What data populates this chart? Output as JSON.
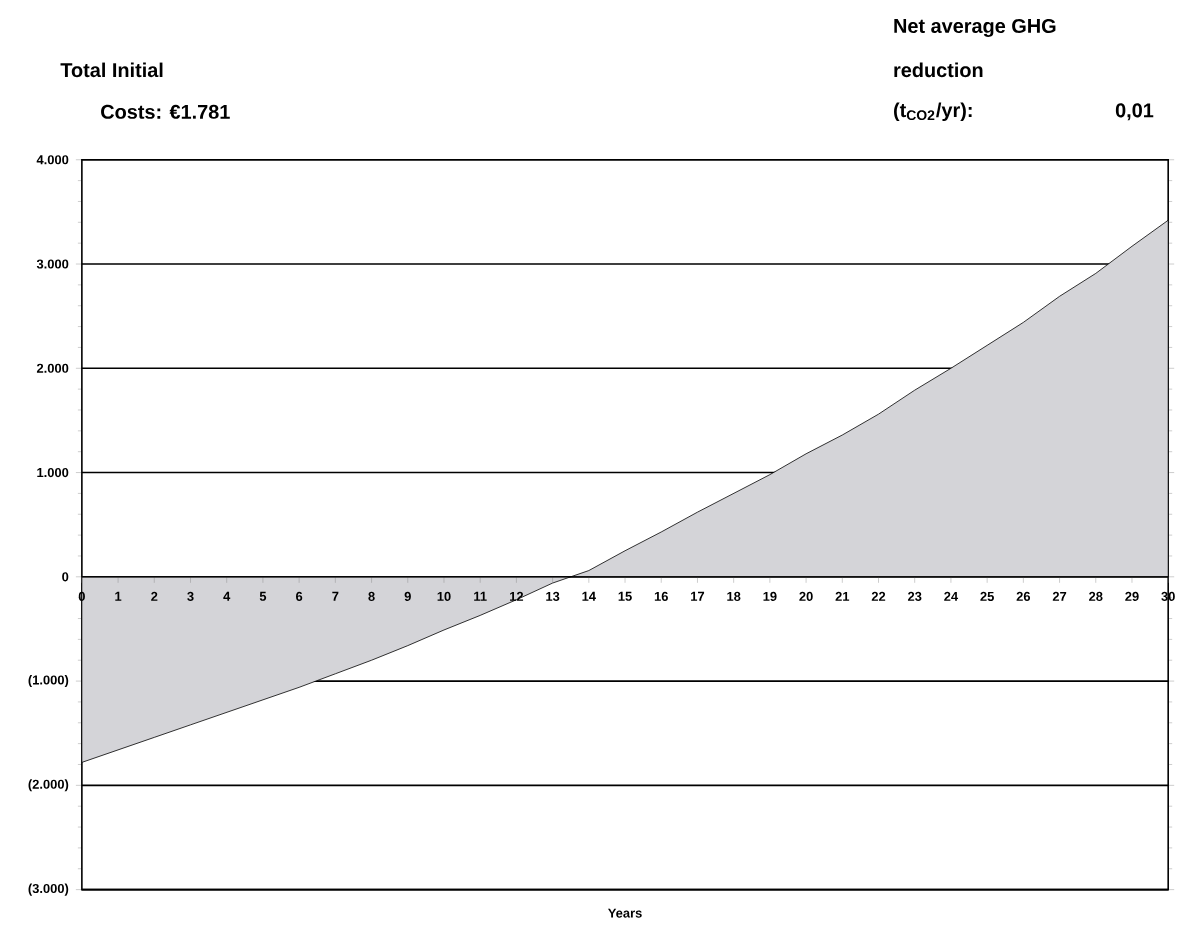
{
  "chart_data": {
    "type": "area",
    "annotations": [
      "Total Initial",
      "Costs: €1.781",
      "Net average GHG",
      "reduction",
      "(t$_{CO2}$/yr):",
      "0,01"
    ],
    "xlabel": "Years",
    "x": [
      0,
      1,
      2,
      3,
      4,
      5,
      6,
      7,
      8,
      9,
      10,
      11,
      12,
      13,
      14,
      15,
      16,
      17,
      18,
      19,
      20,
      21,
      22,
      23,
      24,
      25,
      26,
      27,
      28,
      29,
      30
    ],
    "values": [
      -1780,
      -1660,
      -1540,
      -1420,
      -1300,
      -1180,
      -1060,
      -930,
      -800,
      -660,
      -510,
      -370,
      -220,
      -60,
      60,
      250,
      430,
      620,
      800,
      980,
      1180,
      1360,
      1560,
      1790,
      2000,
      2220,
      2440,
      2690,
      2910,
      3170,
      3420
    ],
    "color": "#d4d4d8",
    "xlim": [
      0,
      30
    ],
    "xticks": [
      0,
      1,
      2,
      3,
      4,
      5,
      6,
      7,
      8,
      9,
      10,
      11,
      12,
      13,
      14,
      15,
      16,
      17,
      18,
      19,
      20,
      21,
      22,
      23,
      24,
      25,
      26,
      27,
      28,
      29,
      30
    ],
    "ylim": [
      -3000,
      4000
    ],
    "yticks": [
      {
        "value": -3000,
        "label": "(3.000)"
      },
      {
        "value": -2000,
        "label": "(2.000)"
      },
      {
        "value": -1000,
        "label": "(1.000)"
      },
      {
        "value": 0,
        "label": "0"
      },
      {
        "value": 1000,
        "label": "1.000"
      },
      {
        "value": 2000,
        "label": "2.000"
      },
      {
        "value": 3000,
        "label": "3.000"
      },
      {
        "value": 4000,
        "label": "4.000"
      }
    ],
    "grid": "y"
  }
}
